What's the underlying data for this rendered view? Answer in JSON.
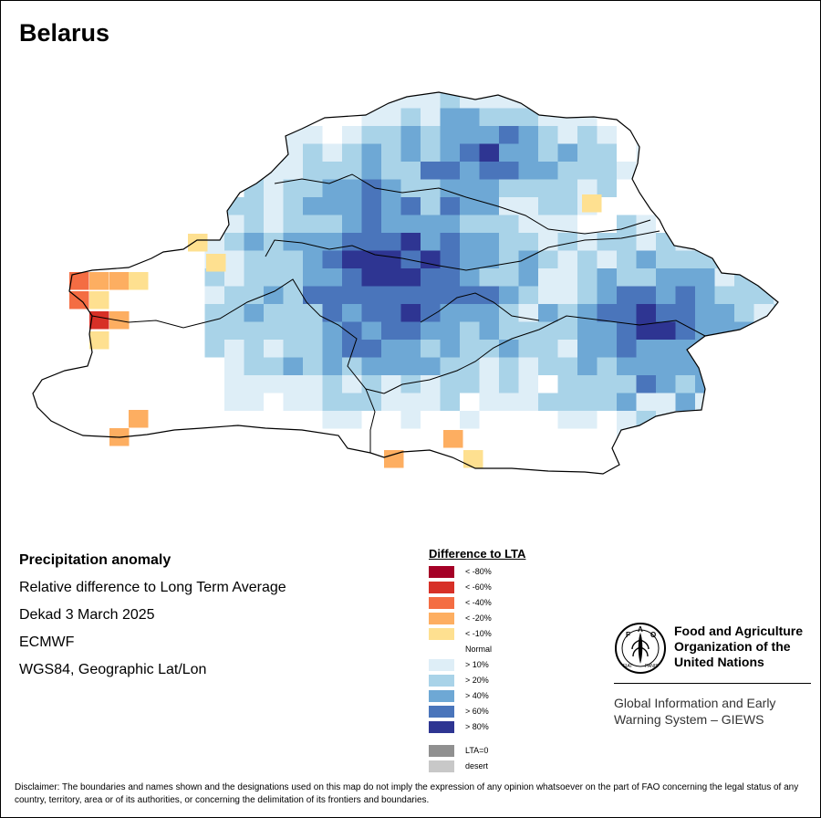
{
  "map": {
    "title": "Belarus",
    "grid_colors": [
      "#ffffff",
      "#deeef7",
      "#a9d3e8",
      "#6ea8d5",
      "#4a75bb",
      "#2e3592"
    ]
  },
  "info": {
    "heading": "Precipitation anomaly",
    "line1": "Relative difference to Long Term Average",
    "line2": "Dekad 3 March 2025",
    "line3": "ECMWF",
    "line4": "WGS84, Geographic Lat/Lon"
  },
  "legend": {
    "title": "Difference to LTA",
    "items": [
      {
        "label": "< -80%",
        "color": "#a50026"
      },
      {
        "label": "< -60%",
        "color": "#d73027"
      },
      {
        "label": "< -40%",
        "color": "#f46d43"
      },
      {
        "label": "< -20%",
        "color": "#fdae61"
      },
      {
        "label": "< -10%",
        "color": "#fee090"
      },
      {
        "label": "Normal",
        "color": "#ffffff"
      },
      {
        "label": "> 10%",
        "color": "#deeef7"
      },
      {
        "label": "> 20%",
        "color": "#a9d3e8"
      },
      {
        "label": "> 40%",
        "color": "#6ea8d5"
      },
      {
        "label": "> 60%",
        "color": "#4a75bb"
      },
      {
        "label": "> 80%",
        "color": "#2e3592"
      }
    ],
    "extra": [
      {
        "label": "LTA=0",
        "color": "#909090"
      },
      {
        "label": "desert",
        "color": "#c8c8c8"
      }
    ]
  },
  "org": {
    "logo_text": "FAO",
    "logo_motto": "FIAT PANIS",
    "name": "Food and Agriculture Organization of the United Nations",
    "system": "Global Information and Early Warning System – GIEWS"
  },
  "disclaimer": "Disclaimer: The boundaries and names shown and the designations used on this map do not imply the expression of any opinion whatsoever on the part of FAO concerning the legal status of any country, territory, area or of its authorities, or concerning the delimitation of its frontiers and boundaries."
}
